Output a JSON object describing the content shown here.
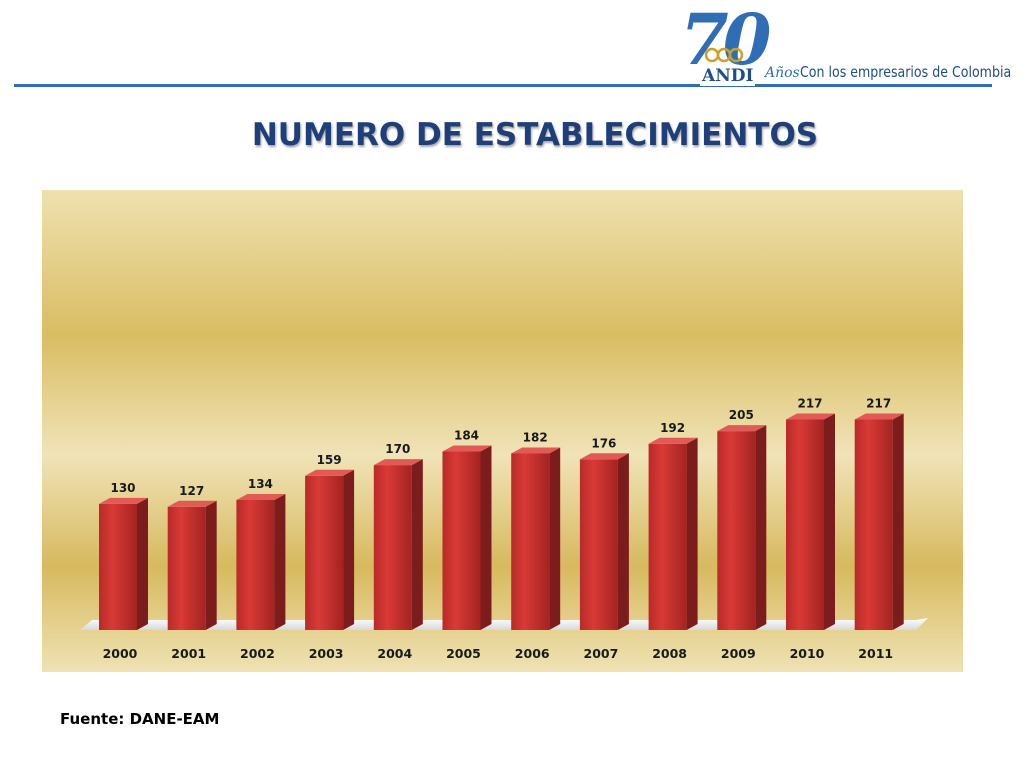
{
  "header": {
    "logo_number": "70",
    "logo_brand": "ANDI",
    "logo_anos": "Años",
    "logo_tagline": "Con los empresarios de Colombia",
    "accent_color": "#2f6db5"
  },
  "chart_data": {
    "type": "bar",
    "title": "NUMERO DE ESTABLECIMIENTOS",
    "xlabel": "",
    "ylabel": "",
    "categories": [
      "2000",
      "2001",
      "2002",
      "2003",
      "2004",
      "2005",
      "2006",
      "2007",
      "2008",
      "2009",
      "2010",
      "2011"
    ],
    "values": [
      130,
      127,
      134,
      159,
      170,
      184,
      182,
      176,
      192,
      205,
      217,
      217
    ],
    "data_labels": true,
    "grid": false,
    "legend": "none",
    "bar_color": "#c8302f",
    "background": "gold gradient"
  },
  "footer": {
    "source": "Fuente: DANE-EAM"
  }
}
